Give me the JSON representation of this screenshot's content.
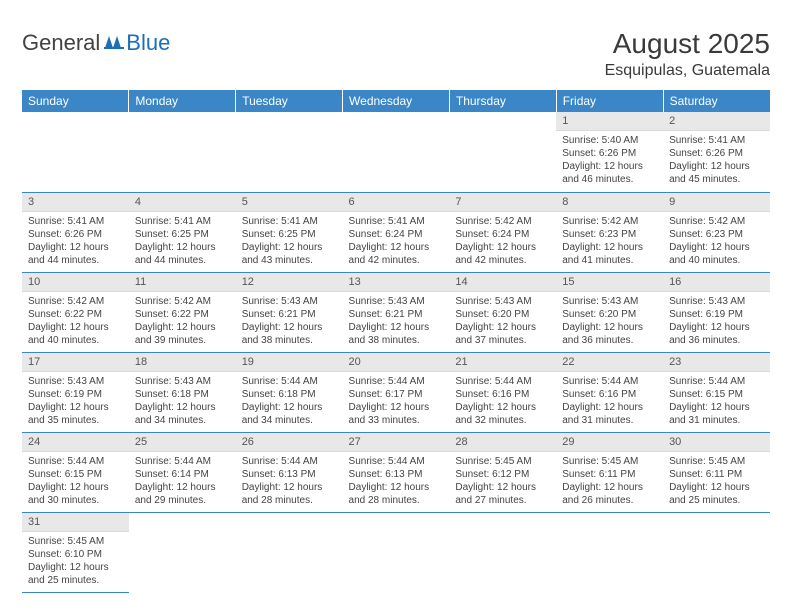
{
  "logo": {
    "general": "General",
    "blue": "Blue"
  },
  "title": "August 2025",
  "location": "Esquipulas, Guatemala",
  "colors": {
    "header_bg": "#3b86c6",
    "header_fg": "#ffffff",
    "daynum_bg": "#e8e8e8",
    "rule": "#3b86c6",
    "logo_blue": "#1a6fb5"
  },
  "weekdays": [
    "Sunday",
    "Monday",
    "Tuesday",
    "Wednesday",
    "Thursday",
    "Friday",
    "Saturday"
  ],
  "weeks": [
    [
      {
        "n": "",
        "sr": "",
        "ss": "",
        "dl": ""
      },
      {
        "n": "",
        "sr": "",
        "ss": "",
        "dl": ""
      },
      {
        "n": "",
        "sr": "",
        "ss": "",
        "dl": ""
      },
      {
        "n": "",
        "sr": "",
        "ss": "",
        "dl": ""
      },
      {
        "n": "",
        "sr": "",
        "ss": "",
        "dl": ""
      },
      {
        "n": "1",
        "sr": "Sunrise: 5:40 AM",
        "ss": "Sunset: 6:26 PM",
        "dl": "Daylight: 12 hours and 46 minutes."
      },
      {
        "n": "2",
        "sr": "Sunrise: 5:41 AM",
        "ss": "Sunset: 6:26 PM",
        "dl": "Daylight: 12 hours and 45 minutes."
      }
    ],
    [
      {
        "n": "3",
        "sr": "Sunrise: 5:41 AM",
        "ss": "Sunset: 6:26 PM",
        "dl": "Daylight: 12 hours and 44 minutes."
      },
      {
        "n": "4",
        "sr": "Sunrise: 5:41 AM",
        "ss": "Sunset: 6:25 PM",
        "dl": "Daylight: 12 hours and 44 minutes."
      },
      {
        "n": "5",
        "sr": "Sunrise: 5:41 AM",
        "ss": "Sunset: 6:25 PM",
        "dl": "Daylight: 12 hours and 43 minutes."
      },
      {
        "n": "6",
        "sr": "Sunrise: 5:41 AM",
        "ss": "Sunset: 6:24 PM",
        "dl": "Daylight: 12 hours and 42 minutes."
      },
      {
        "n": "7",
        "sr": "Sunrise: 5:42 AM",
        "ss": "Sunset: 6:24 PM",
        "dl": "Daylight: 12 hours and 42 minutes."
      },
      {
        "n": "8",
        "sr": "Sunrise: 5:42 AM",
        "ss": "Sunset: 6:23 PM",
        "dl": "Daylight: 12 hours and 41 minutes."
      },
      {
        "n": "9",
        "sr": "Sunrise: 5:42 AM",
        "ss": "Sunset: 6:23 PM",
        "dl": "Daylight: 12 hours and 40 minutes."
      }
    ],
    [
      {
        "n": "10",
        "sr": "Sunrise: 5:42 AM",
        "ss": "Sunset: 6:22 PM",
        "dl": "Daylight: 12 hours and 40 minutes."
      },
      {
        "n": "11",
        "sr": "Sunrise: 5:42 AM",
        "ss": "Sunset: 6:22 PM",
        "dl": "Daylight: 12 hours and 39 minutes."
      },
      {
        "n": "12",
        "sr": "Sunrise: 5:43 AM",
        "ss": "Sunset: 6:21 PM",
        "dl": "Daylight: 12 hours and 38 minutes."
      },
      {
        "n": "13",
        "sr": "Sunrise: 5:43 AM",
        "ss": "Sunset: 6:21 PM",
        "dl": "Daylight: 12 hours and 38 minutes."
      },
      {
        "n": "14",
        "sr": "Sunrise: 5:43 AM",
        "ss": "Sunset: 6:20 PM",
        "dl": "Daylight: 12 hours and 37 minutes."
      },
      {
        "n": "15",
        "sr": "Sunrise: 5:43 AM",
        "ss": "Sunset: 6:20 PM",
        "dl": "Daylight: 12 hours and 36 minutes."
      },
      {
        "n": "16",
        "sr": "Sunrise: 5:43 AM",
        "ss": "Sunset: 6:19 PM",
        "dl": "Daylight: 12 hours and 36 minutes."
      }
    ],
    [
      {
        "n": "17",
        "sr": "Sunrise: 5:43 AM",
        "ss": "Sunset: 6:19 PM",
        "dl": "Daylight: 12 hours and 35 minutes."
      },
      {
        "n": "18",
        "sr": "Sunrise: 5:43 AM",
        "ss": "Sunset: 6:18 PM",
        "dl": "Daylight: 12 hours and 34 minutes."
      },
      {
        "n": "19",
        "sr": "Sunrise: 5:44 AM",
        "ss": "Sunset: 6:18 PM",
        "dl": "Daylight: 12 hours and 34 minutes."
      },
      {
        "n": "20",
        "sr": "Sunrise: 5:44 AM",
        "ss": "Sunset: 6:17 PM",
        "dl": "Daylight: 12 hours and 33 minutes."
      },
      {
        "n": "21",
        "sr": "Sunrise: 5:44 AM",
        "ss": "Sunset: 6:16 PM",
        "dl": "Daylight: 12 hours and 32 minutes."
      },
      {
        "n": "22",
        "sr": "Sunrise: 5:44 AM",
        "ss": "Sunset: 6:16 PM",
        "dl": "Daylight: 12 hours and 31 minutes."
      },
      {
        "n": "23",
        "sr": "Sunrise: 5:44 AM",
        "ss": "Sunset: 6:15 PM",
        "dl": "Daylight: 12 hours and 31 minutes."
      }
    ],
    [
      {
        "n": "24",
        "sr": "Sunrise: 5:44 AM",
        "ss": "Sunset: 6:15 PM",
        "dl": "Daylight: 12 hours and 30 minutes."
      },
      {
        "n": "25",
        "sr": "Sunrise: 5:44 AM",
        "ss": "Sunset: 6:14 PM",
        "dl": "Daylight: 12 hours and 29 minutes."
      },
      {
        "n": "26",
        "sr": "Sunrise: 5:44 AM",
        "ss": "Sunset: 6:13 PM",
        "dl": "Daylight: 12 hours and 28 minutes."
      },
      {
        "n": "27",
        "sr": "Sunrise: 5:44 AM",
        "ss": "Sunset: 6:13 PM",
        "dl": "Daylight: 12 hours and 28 minutes."
      },
      {
        "n": "28",
        "sr": "Sunrise: 5:45 AM",
        "ss": "Sunset: 6:12 PM",
        "dl": "Daylight: 12 hours and 27 minutes."
      },
      {
        "n": "29",
        "sr": "Sunrise: 5:45 AM",
        "ss": "Sunset: 6:11 PM",
        "dl": "Daylight: 12 hours and 26 minutes."
      },
      {
        "n": "30",
        "sr": "Sunrise: 5:45 AM",
        "ss": "Sunset: 6:11 PM",
        "dl": "Daylight: 12 hours and 25 minutes."
      }
    ],
    [
      {
        "n": "31",
        "sr": "Sunrise: 5:45 AM",
        "ss": "Sunset: 6:10 PM",
        "dl": "Daylight: 12 hours and 25 minutes."
      },
      {
        "n": "",
        "sr": "",
        "ss": "",
        "dl": ""
      },
      {
        "n": "",
        "sr": "",
        "ss": "",
        "dl": ""
      },
      {
        "n": "",
        "sr": "",
        "ss": "",
        "dl": ""
      },
      {
        "n": "",
        "sr": "",
        "ss": "",
        "dl": ""
      },
      {
        "n": "",
        "sr": "",
        "ss": "",
        "dl": ""
      },
      {
        "n": "",
        "sr": "",
        "ss": "",
        "dl": ""
      }
    ]
  ]
}
